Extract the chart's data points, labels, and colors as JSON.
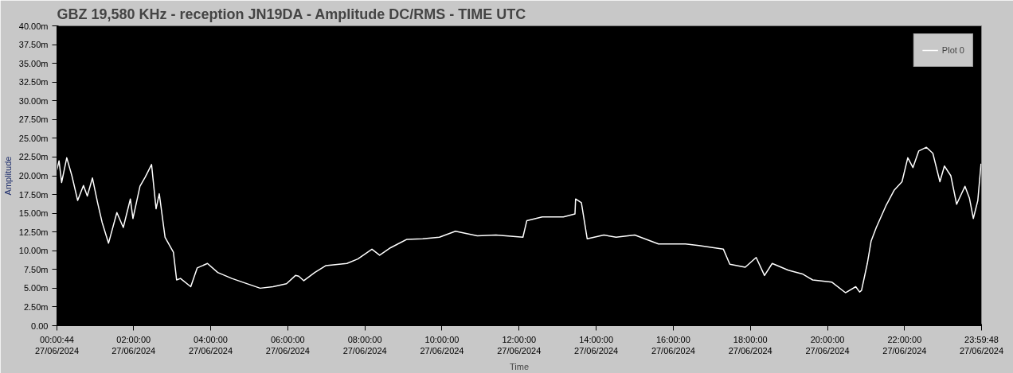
{
  "chart_data": {
    "type": "line",
    "title": "GBZ  19,580 KHz - reception JN19DA -  Amplitude DC/RMS   - TIME UTC",
    "xlabel": "Time",
    "ylabel": "Amplitude",
    "x": [
      "2024-06-27T00:00:44",
      "2024-06-27T00:04",
      "2024-06-27T00:08",
      "2024-06-27T00:16",
      "2024-06-27T00:24",
      "2024-06-27T00:33",
      "2024-06-27T00:42",
      "2024-06-27T00:48",
      "2024-06-27T00:56",
      "2024-06-27T01:04",
      "2024-06-27T01:11",
      "2024-06-27T01:21",
      "2024-06-27T01:34",
      "2024-06-27T01:44",
      "2024-06-27T01:55",
      "2024-06-27T01:59",
      "2024-06-27T02:10",
      "2024-06-27T02:18",
      "2024-06-27T02:28",
      "2024-06-27T02:35",
      "2024-06-27T02:40",
      "2024-06-27T02:49",
      "2024-06-27T03:02",
      "2024-06-27T03:07",
      "2024-06-27T03:13",
      "2024-06-27T03:29",
      "2024-06-27T03:39",
      "2024-06-27T03:55",
      "2024-06-27T04:11",
      "2024-06-27T04:33",
      "2024-06-27T04:50",
      "2024-06-27T05:17",
      "2024-06-27T05:37",
      "2024-06-27T05:58",
      "2024-06-27T06:12",
      "2024-06-27T06:17",
      "2024-06-27T06:25",
      "2024-06-27T06:42",
      "2024-06-27T06:59",
      "2024-06-27T07:32",
      "2024-06-27T07:49",
      "2024-06-27T08:11",
      "2024-06-27T08:23",
      "2024-06-27T08:40",
      "2024-06-27T09:05",
      "2024-06-27T09:30",
      "2024-06-27T09:56",
      "2024-06-27T10:21",
      "2024-06-27T10:55",
      "2024-06-27T11:24",
      "2024-06-27T12:06",
      "2024-06-27T12:12",
      "2024-06-27T12:36",
      "2024-06-27T13:09",
      "2024-06-27T13:27",
      "2024-06-27T13:28",
      "2024-06-27T13:37",
      "2024-06-27T13:46",
      "2024-06-27T14:12",
      "2024-06-27T14:31",
      "2024-06-27T15:00",
      "2024-06-27T15:37",
      "2024-06-27T16:19",
      "2024-06-27T16:40",
      "2024-06-27T17:18",
      "2024-06-27T17:28",
      "2024-06-27T17:52",
      "2024-06-27T18:09",
      "2024-06-27T18:22",
      "2024-06-27T18:34",
      "2024-06-27T18:59",
      "2024-06-27T19:21",
      "2024-06-27T19:37",
      "2024-06-27T20:07",
      "2024-06-27T20:28",
      "2024-06-27T20:44",
      "2024-06-27T20:50",
      "2024-06-27T20:53",
      "2024-06-27T21:02",
      "2024-06-27T21:08",
      "2024-06-27T21:16",
      "2024-06-27T21:31",
      "2024-06-27T21:44",
      "2024-06-27T21:56",
      "2024-06-27T22:05",
      "2024-06-27T22:13",
      "2024-06-27T22:22",
      "2024-06-27T22:34",
      "2024-06-27T22:44",
      "2024-06-27T22:55",
      "2024-06-27T23:02",
      "2024-06-27T23:12",
      "2024-06-27T23:21",
      "2024-06-27T23:34",
      "2024-06-27T23:41",
      "2024-06-27T23:47",
      "2024-06-27T23:54",
      "2024-06-27T23:59"
    ],
    "series": [
      {
        "name": "Plot 0",
        "color": "#ffffff",
        "values": [
          20.8,
          22.0,
          19.1,
          22.4,
          20.0,
          16.7,
          18.7,
          17.3,
          19.7,
          16.4,
          13.8,
          11.0,
          15.1,
          13.1,
          16.9,
          14.3,
          18.6,
          19.8,
          21.5,
          15.6,
          17.6,
          11.8,
          9.8,
          6.1,
          6.3,
          5.2,
          7.7,
          8.3,
          7.1,
          6.3,
          5.8,
          5.0,
          5.2,
          5.6,
          6.7,
          6.6,
          6.0,
          7.1,
          8.0,
          8.3,
          8.9,
          10.2,
          9.4,
          10.4,
          11.5,
          11.6,
          11.8,
          12.6,
          12.0,
          12.1,
          11.8,
          14.0,
          14.5,
          14.5,
          14.9,
          16.9,
          16.4,
          11.6,
          12.1,
          11.8,
          12.1,
          10.9,
          10.9,
          10.7,
          10.2,
          8.2,
          7.8,
          9.1,
          6.7,
          8.3,
          7.4,
          6.9,
          6.1,
          5.8,
          4.4,
          5.2,
          4.5,
          4.7,
          8.3,
          11.3,
          13.1,
          16.0,
          18.1,
          19.2,
          22.4,
          21.1,
          23.3,
          23.8,
          23.0,
          19.2,
          21.3,
          20.0,
          16.2,
          18.6,
          17.0,
          14.3,
          16.7,
          21.6
        ]
      }
    ],
    "xlim": [
      "2024-06-27T00:00:44",
      "2024-06-27T23:59:48"
    ],
    "ylim": [
      0,
      40
    ],
    "xticks": [
      {
        "value": "2024-06-27T00:00:44",
        "label": "00:00:44\n27/06/2024"
      },
      {
        "value": "2024-06-27T02:00",
        "label": "02:00:00\n27/06/2024"
      },
      {
        "value": "2024-06-27T04:00",
        "label": "04:00:00\n27/06/2024"
      },
      {
        "value": "2024-06-27T06:00",
        "label": "06:00:00\n27/06/2024"
      },
      {
        "value": "2024-06-27T08:00",
        "label": "08:00:00\n27/06/2024"
      },
      {
        "value": "2024-06-27T10:00",
        "label": "10:00:00\n27/06/2024"
      },
      {
        "value": "2024-06-27T12:00",
        "label": "12:00:00\n27/06/2024"
      },
      {
        "value": "2024-06-27T14:00",
        "label": "14:00:00\n27/06/2024"
      },
      {
        "value": "2024-06-27T16:00",
        "label": "16:00:00\n27/06/2024"
      },
      {
        "value": "2024-06-27T18:00",
        "label": "18:00:00\n27/06/2024"
      },
      {
        "value": "2024-06-27T20:00",
        "label": "20:00:00\n27/06/2024"
      },
      {
        "value": "2024-06-27T22:00",
        "label": "22:00:00\n27/06/2024"
      },
      {
        "value": "2024-06-27T23:59:48",
        "label": "23:59:48\n27/06/2024"
      }
    ],
    "yticks": [
      {
        "value": 0,
        "label": "0.00"
      },
      {
        "value": 2.5,
        "label": "2.50m"
      },
      {
        "value": 5,
        "label": "5.00m"
      },
      {
        "value": 7.5,
        "label": "7.50m"
      },
      {
        "value": 10,
        "label": "10.00m"
      },
      {
        "value": 12.5,
        "label": "12.50m"
      },
      {
        "value": 15,
        "label": "15.00m"
      },
      {
        "value": 17.5,
        "label": "17.50m"
      },
      {
        "value": 20,
        "label": "20.00m"
      },
      {
        "value": 22.5,
        "label": "22.50m"
      },
      {
        "value": 25,
        "label": "25.00m"
      },
      {
        "value": 27.5,
        "label": "27.50m"
      },
      {
        "value": 30,
        "label": "30.00m"
      },
      {
        "value": 32.5,
        "label": "32.50m"
      },
      {
        "value": 35,
        "label": "35.00m"
      },
      {
        "value": 37.5,
        "label": "37.50m"
      },
      {
        "value": 40,
        "label": "40.00m"
      }
    ],
    "grid": false,
    "legend": "top right",
    "marker": "none",
    "line_style": "solid"
  }
}
